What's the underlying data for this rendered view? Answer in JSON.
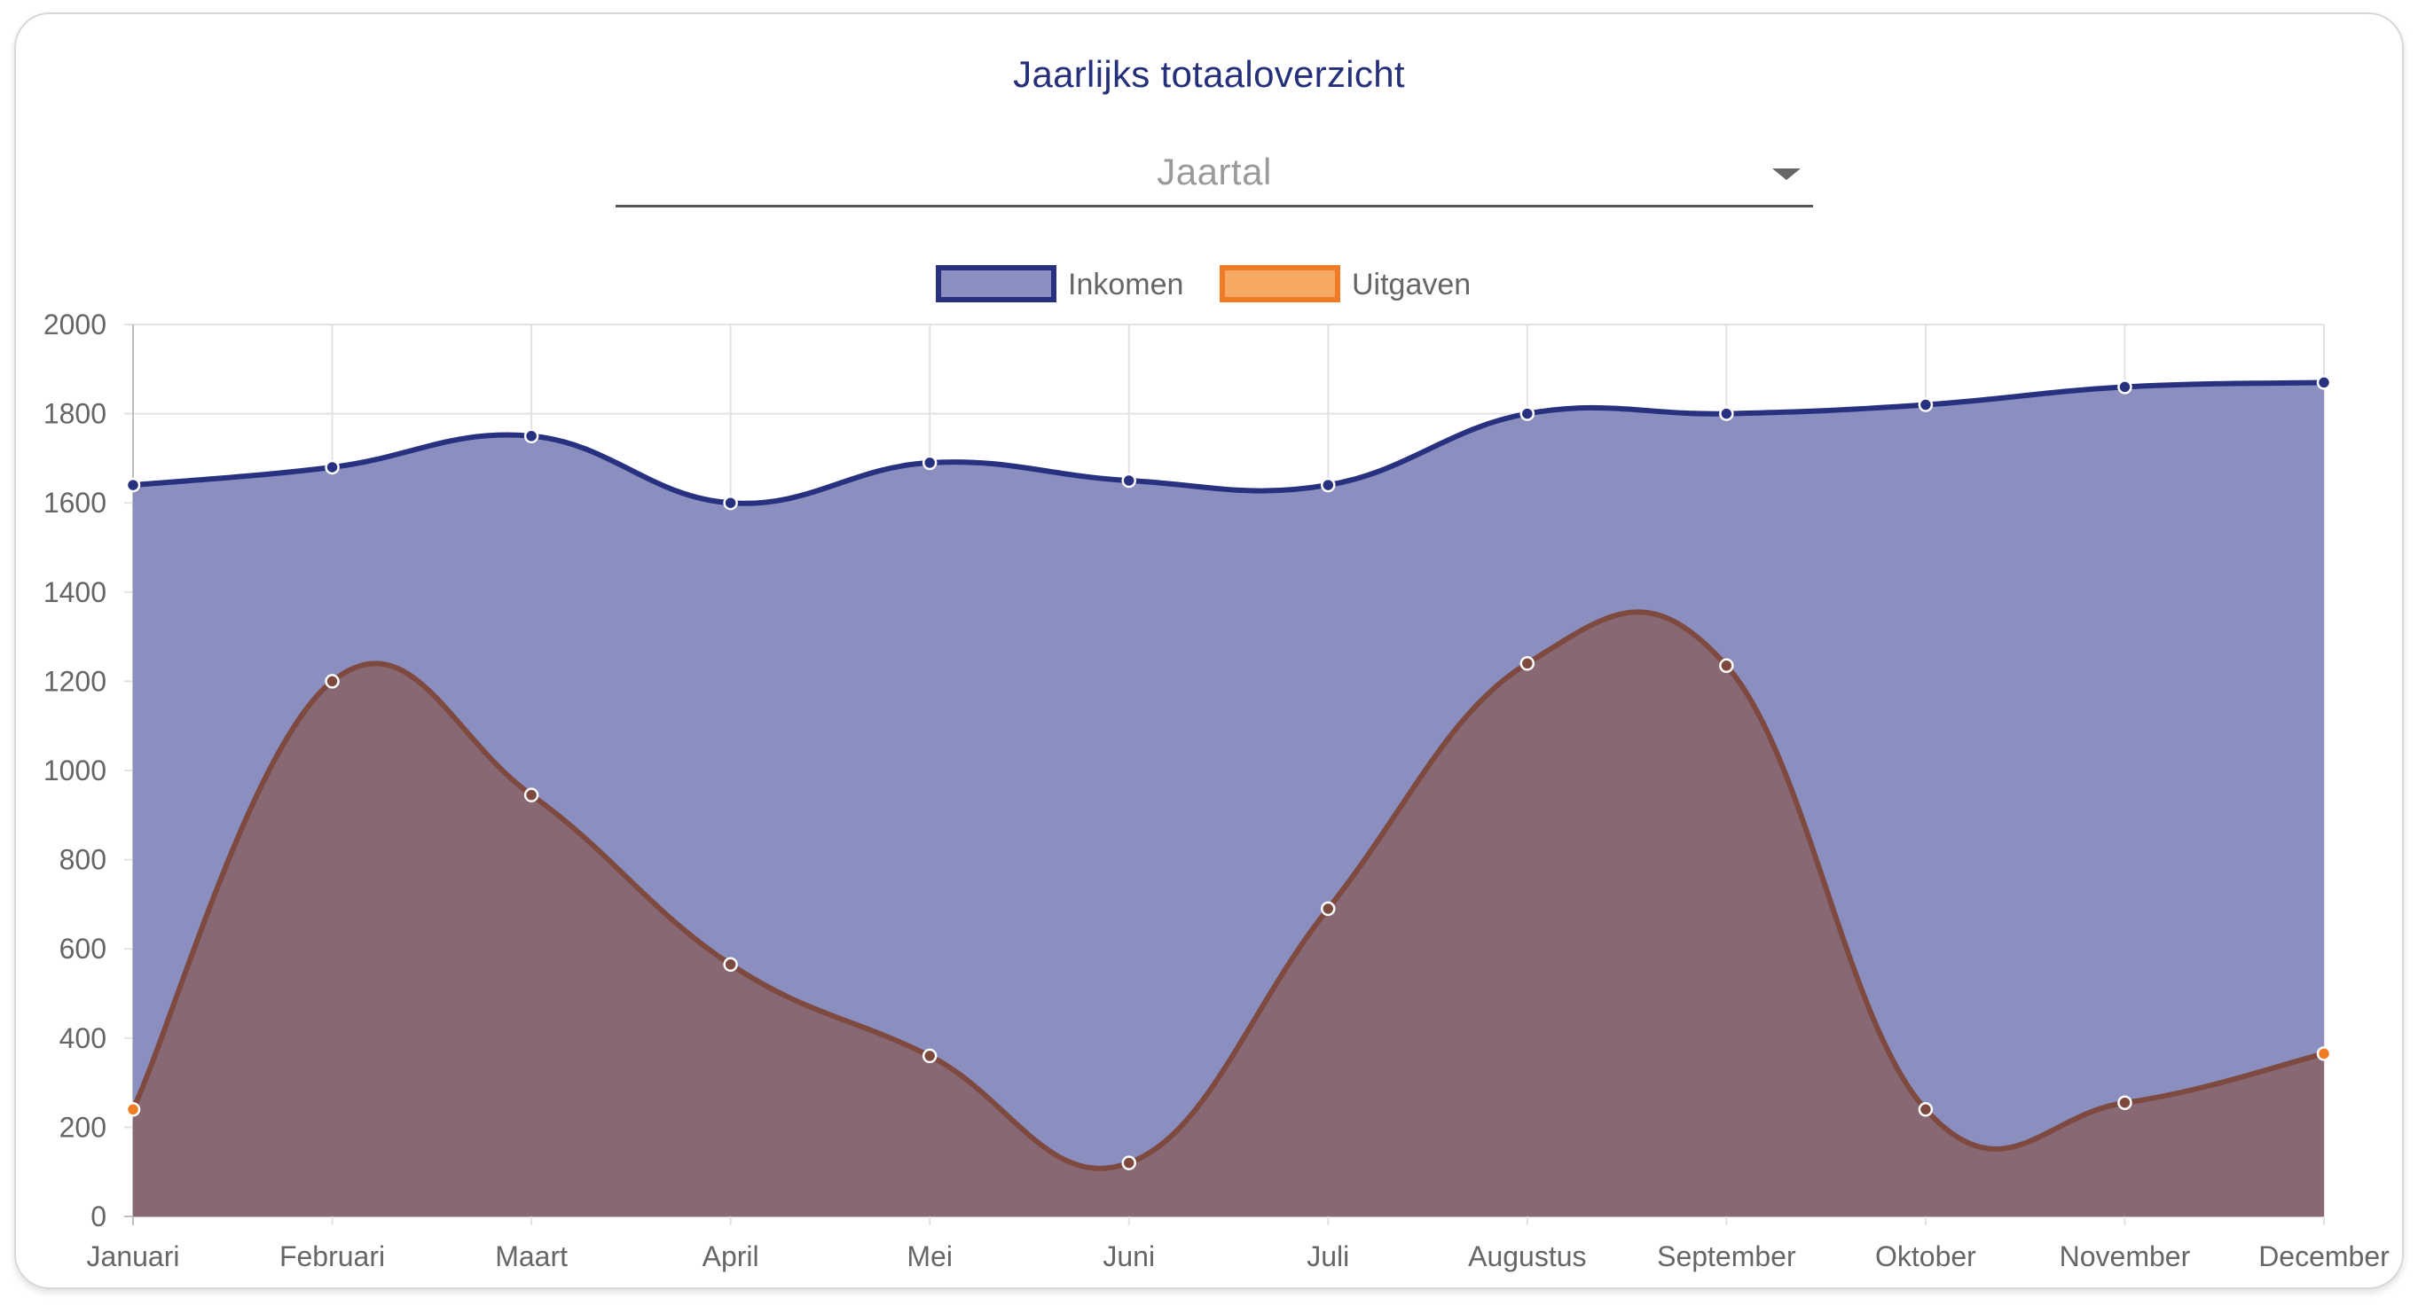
{
  "card": {
    "title": "Jaarlijks totaaloverzicht",
    "select": {
      "placeholder": "Jaartal"
    }
  },
  "chart_data": {
    "type": "area",
    "categories": [
      "Januari",
      "Februari",
      "Maart",
      "April",
      "Mei",
      "Juni",
      "Juli",
      "Augustus",
      "September",
      "Oktober",
      "November",
      "December"
    ],
    "series": [
      {
        "name": "Inkomen",
        "values": [
          1640,
          1680,
          1750,
          1600,
          1690,
          1650,
          1640,
          1800,
          1800,
          1820,
          1860,
          1870
        ],
        "line_color": "#283180",
        "fill_color": "#8a8fbf"
      },
      {
        "name": "Uitgaven",
        "values": [
          240,
          1200,
          945,
          565,
          360,
          120,
          690,
          1240,
          1235,
          240,
          255,
          365
        ],
        "line_color": "#7e4a40",
        "fill_color": "#876873",
        "point_color": "#ef7b25",
        "legend_fill": "#f7a964",
        "legend_border": "#ef7b25"
      }
    ],
    "title": "",
    "xlabel": "",
    "ylabel": "",
    "ylim": [
      0,
      2000
    ],
    "yticks": [
      0,
      200,
      400,
      600,
      800,
      1000,
      1200,
      1400,
      1600,
      1800,
      2000
    ],
    "grid": true,
    "legend_position": "top-center"
  }
}
